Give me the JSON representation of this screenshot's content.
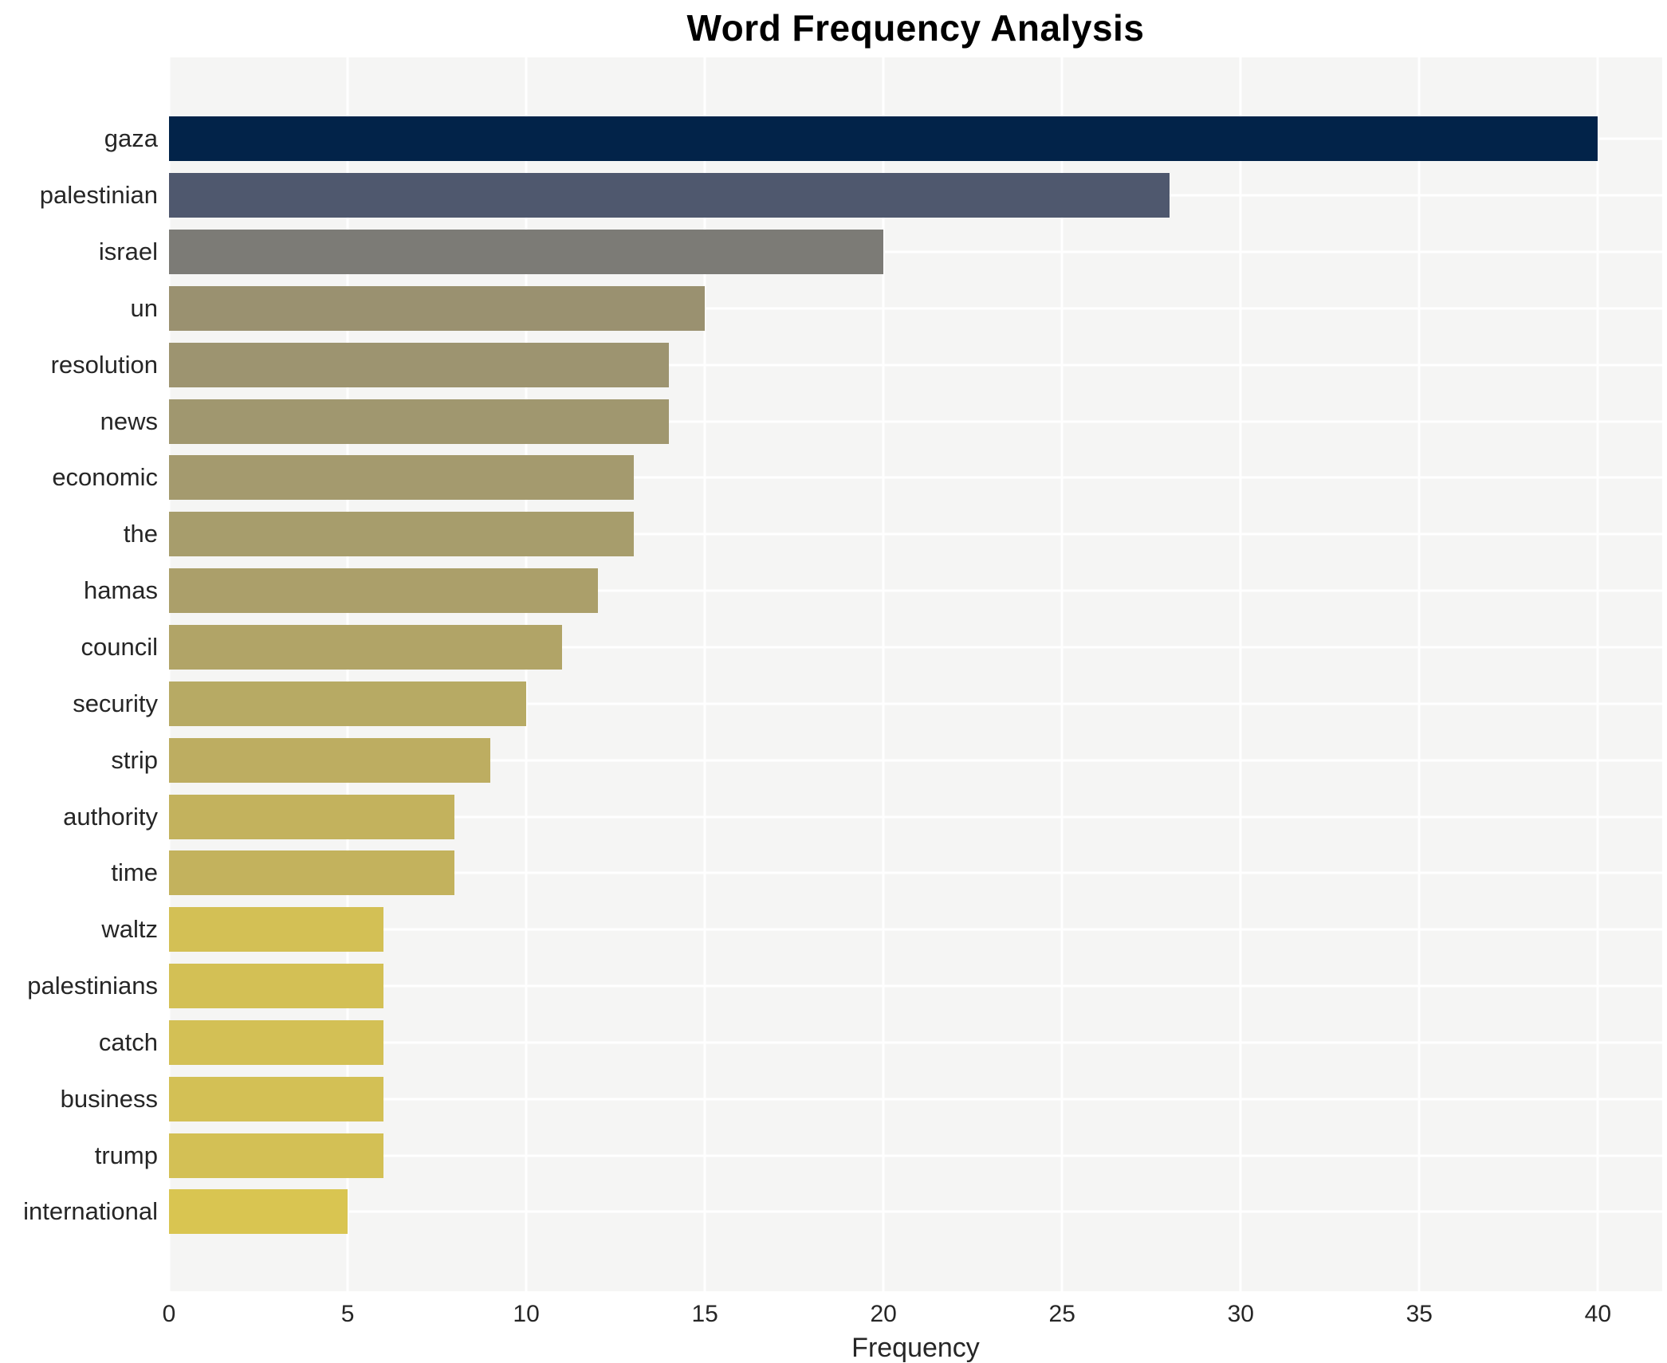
{
  "title": "Word Frequency Analysis",
  "xlabel": "Frequency",
  "colors": {
    "figure_bg": "#ffffff",
    "panel_bg": "#f5f5f4",
    "gridline": "#ffffff",
    "text": "#262626",
    "title_text": "#000000"
  },
  "chart_data": {
    "type": "bar",
    "orientation": "horizontal",
    "title": "Word Frequency Analysis",
    "xlabel": "Frequency",
    "ylabel": "",
    "categories": [
      "gaza",
      "palestinian",
      "israel",
      "un",
      "resolution",
      "news",
      "economic",
      "the",
      "hamas",
      "council",
      "security",
      "strip",
      "authority",
      "time",
      "waltz",
      "palestinians",
      "catch",
      "business",
      "trump",
      "international"
    ],
    "values": [
      40,
      28,
      20,
      15,
      14,
      14,
      13,
      13,
      12,
      11,
      10,
      9,
      8,
      8,
      6,
      6,
      6,
      6,
      6,
      5
    ],
    "bar_colors": [
      "#022349",
      "#4f586e",
      "#7c7b76",
      "#9a9170",
      "#9d9470",
      "#a0976f",
      "#a49a6e",
      "#a79d6c",
      "#ab9f6a",
      "#b1a467",
      "#b7aa64",
      "#bdad61",
      "#c3b25d",
      "#c3b25d",
      "#d3c055",
      "#d3c055",
      "#d3c055",
      "#d3c055",
      "#d3c055",
      "#d9c551"
    ],
    "xticks": [
      0,
      5,
      10,
      15,
      20,
      25,
      30,
      35,
      40
    ],
    "xlim": [
      0,
      41.8
    ],
    "grid": "white vertical gridlines at ticks and horizontal gridlines through bar centers on light-gray panel",
    "legend": "none"
  }
}
